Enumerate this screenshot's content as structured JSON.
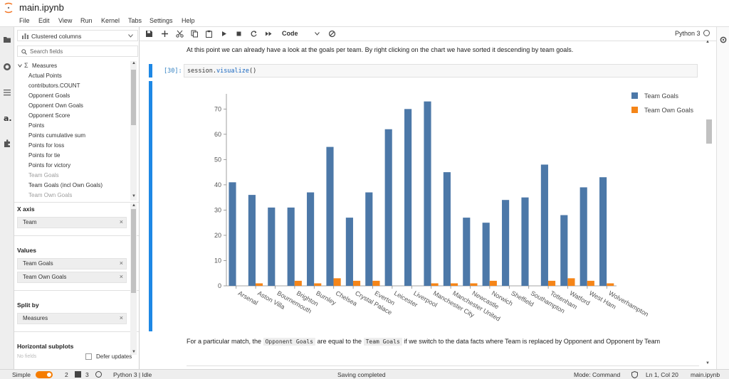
{
  "window": {
    "title": "main.ipynb"
  },
  "menu": [
    "File",
    "Edit",
    "View",
    "Run",
    "Kernel",
    "Tabs",
    "Settings",
    "Help"
  ],
  "panel": {
    "chart_type_select": "Clustered columns",
    "search_placeholder": "Search fields",
    "measures_header": "Measures",
    "fields": [
      "Actual Points",
      "contributors.COUNT",
      "Opponent Goals",
      "Opponent Own Goals",
      "Opponent Score",
      "Points",
      "Points cumulative sum",
      "Points for loss",
      "Points for tie",
      "Points for victory",
      "Team Goals",
      "Team Goals (incl Own Goals)",
      "Team Own Goals"
    ],
    "x_axis_label": "X axis",
    "x_axis_chip": "Team",
    "values_label": "Values",
    "values_chips": [
      "Team Goals",
      "Team Own Goals"
    ],
    "split_by_label": "Split by",
    "split_by_chip": "Measures",
    "horizontal_subplots_label": "Horizontal subplots",
    "horizontal_subplots_hint": "No fields",
    "defer_updates_label": "Defer updates"
  },
  "toolbar": {
    "cell_type": "Code",
    "kernel_name": "Python 3"
  },
  "notebook": {
    "markdown_top": "At this point we can already have a look at the goals per team. By right clicking on the chart we have sorted it descending by team goals.",
    "input_prompt": "[30]:",
    "input_code_prefix": "session.",
    "input_code_method": "visualize",
    "input_code_suffix": "()",
    "markdown_bottom_1": "For a particular match, the",
    "markdown_bottom_code1": "Opponent Goals",
    "markdown_bottom_2": "are equal to the",
    "markdown_bottom_code2": "Team Goals",
    "markdown_bottom_3": "if we switch to the data facts where Team is replaced by Opponent and Opponent by",
    "markdown_bottom_4": "Team"
  },
  "statusbar": {
    "mode_simple": "Simple",
    "count_a": "2",
    "count_b": "3",
    "kernel_status": "Python 3 | Idle",
    "save_status": "Saving completed",
    "mode_command": "Mode: Command",
    "cursor_pos": "Ln 1, Col 20",
    "file_name": "main.ipynb"
  },
  "colors": {
    "team_goals": "#4c78a8",
    "team_own_goals": "#f58518",
    "accent": "#1e88e5",
    "toggle": "#f57c00"
  },
  "chart_data": {
    "type": "bar",
    "categories": [
      "Arsenal",
      "Aston Villa",
      "Bournemouth",
      "Brighton",
      "Burnley",
      "Chelsea",
      "Crystal Palace",
      "Everton",
      "Leicester",
      "Liverpool",
      "Manchester City",
      "Manchester United",
      "Newcastle",
      "Norwich",
      "Sheffield",
      "Southampton",
      "Tottenham",
      "Watford",
      "West Ham",
      "Wolverhampton"
    ],
    "series": [
      {
        "name": "Team Goals",
        "values": [
          41,
          36,
          31,
          31,
          37,
          55,
          27,
          37,
          62,
          70,
          73,
          45,
          27,
          25,
          34,
          35,
          48,
          28,
          39,
          43
        ]
      },
      {
        "name": "Team Own Goals",
        "values": [
          0,
          1,
          0,
          2,
          1,
          3,
          2,
          2,
          0,
          0,
          1,
          1,
          1,
          2,
          0,
          0,
          2,
          3,
          2,
          1
        ]
      }
    ],
    "yticks": [
      0,
      10,
      20,
      30,
      40,
      50,
      60,
      70
    ],
    "ylim": [
      0,
      76
    ],
    "legend_position": "top-right",
    "grid": false
  }
}
